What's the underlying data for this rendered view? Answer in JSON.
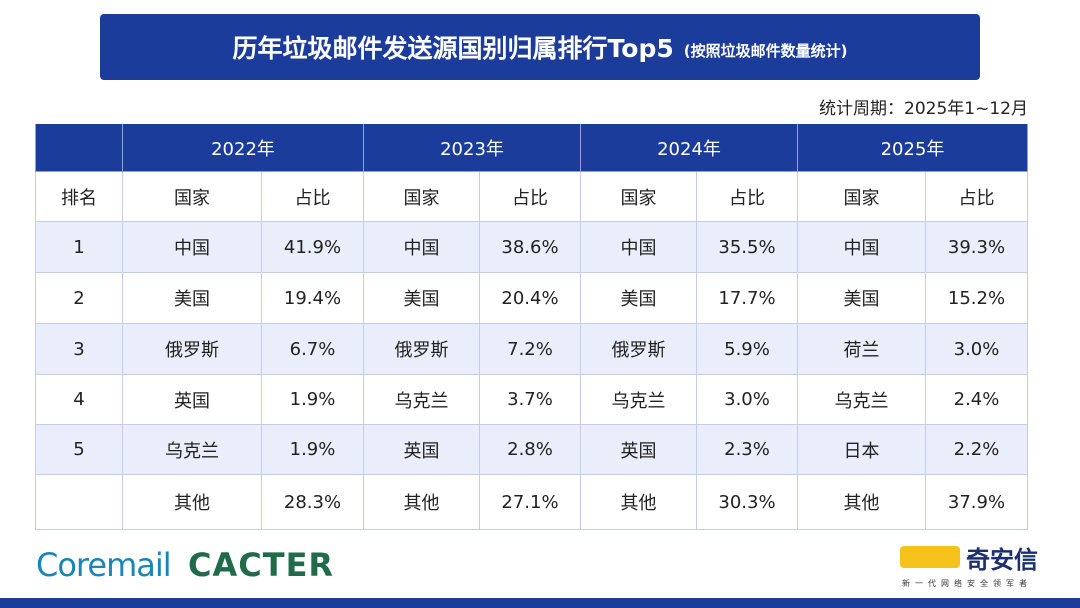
{
  "header": {
    "title": "历年垃圾邮件发送源国别归属排行Top5",
    "subtitle": "(按照垃圾邮件数量统计)"
  },
  "period": "统计周期：2025年1~12月",
  "table": {
    "years": [
      "2022年",
      "2023年",
      "2024年",
      "2025年"
    ],
    "columns": [
      "排名",
      "国家",
      "占比",
      "国家",
      "占比",
      "国家",
      "占比",
      "国家",
      "占比"
    ],
    "rows": [
      {
        "rank": "1",
        "cells": [
          "中国",
          "41.9%",
          "中国",
          "38.6%",
          "中国",
          "35.5%",
          "中国",
          "39.3%"
        ]
      },
      {
        "rank": "2",
        "cells": [
          "美国",
          "19.4%",
          "美国",
          "20.4%",
          "美国",
          "17.7%",
          "美国",
          "15.2%"
        ]
      },
      {
        "rank": "3",
        "cells": [
          "俄罗斯",
          "6.7%",
          "俄罗斯",
          "7.2%",
          "俄罗斯",
          "5.9%",
          "荷兰",
          "3.0%"
        ]
      },
      {
        "rank": "4",
        "cells": [
          "英国",
          "1.9%",
          "乌克兰",
          "3.7%",
          "乌克兰",
          "3.0%",
          "乌克兰",
          "2.4%"
        ]
      },
      {
        "rank": "5",
        "cells": [
          "乌克兰",
          "1.9%",
          "英国",
          "2.8%",
          "英国",
          "2.3%",
          "日本",
          "2.2%"
        ]
      },
      {
        "cells": [
          "其他",
          "28.3%",
          "其他",
          "27.1%",
          "其他",
          "30.3%",
          "其他",
          "37.9%"
        ]
      }
    ]
  },
  "footer": {
    "left_logos": [
      "Coremail",
      "CACTER"
    ],
    "right_brand": "奇安信",
    "slogan": "新一代网络安全领军者"
  }
}
